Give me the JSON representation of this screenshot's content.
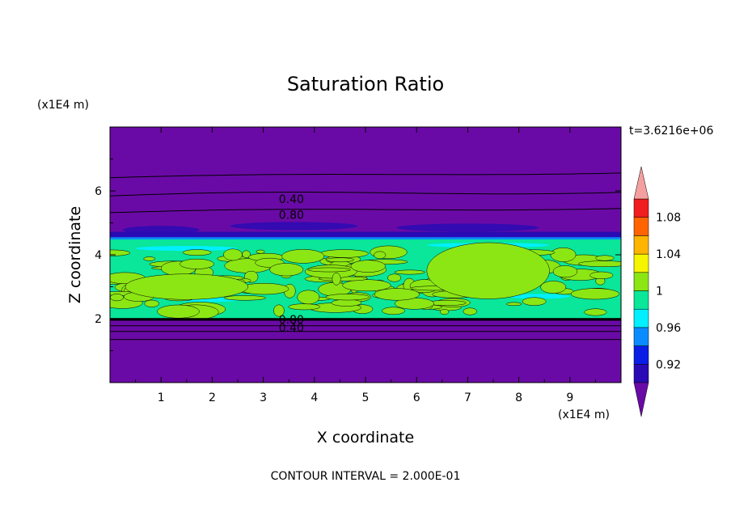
{
  "chart_data": {
    "type": "heatmap",
    "title": "Saturation Ratio",
    "xlabel": "X coordinate",
    "ylabel": "Z coordinate",
    "x_unit": "(x1E4 m)",
    "y_unit": "(x1E4 m)",
    "time_label": "t=3.6216e+06",
    "footer": "CONTOUR INTERVAL = 2.000E-01",
    "xlim": [
      0,
      10
    ],
    "ylim": [
      0,
      8
    ],
    "x_ticks": [
      "1",
      "2",
      "3",
      "4",
      "5",
      "6",
      "7",
      "8",
      "9"
    ],
    "y_ticks": [
      "2",
      "4",
      "6"
    ],
    "colorbar": {
      "levels": [
        0.9,
        0.92,
        0.94,
        0.96,
        0.98,
        1,
        1.02,
        1.04,
        1.06,
        1.08,
        1.1
      ],
      "labels": [
        "0.92",
        "0.96",
        "1",
        "1.04",
        "1.08"
      ],
      "colors": [
        "#6a0aa6",
        "#2a0ab4",
        "#0a1ee6",
        "#0a8cff",
        "#00f0ff",
        "#0ae69a",
        "#8ce614",
        "#f5f500",
        "#ffb400",
        "#ff6400",
        "#f01e1e",
        "#f5a0a0"
      ]
    },
    "contour_labels": [
      {
        "text": "0.40",
        "x": 3.55,
        "y": 5.75
      },
      {
        "text": "0.80",
        "x": 3.55,
        "y": 5.25
      },
      {
        "text": "0.80",
        "x": 3.55,
        "y": 1.98
      },
      {
        "text": "0.40",
        "x": 3.55,
        "y": 1.72
      }
    ]
  }
}
